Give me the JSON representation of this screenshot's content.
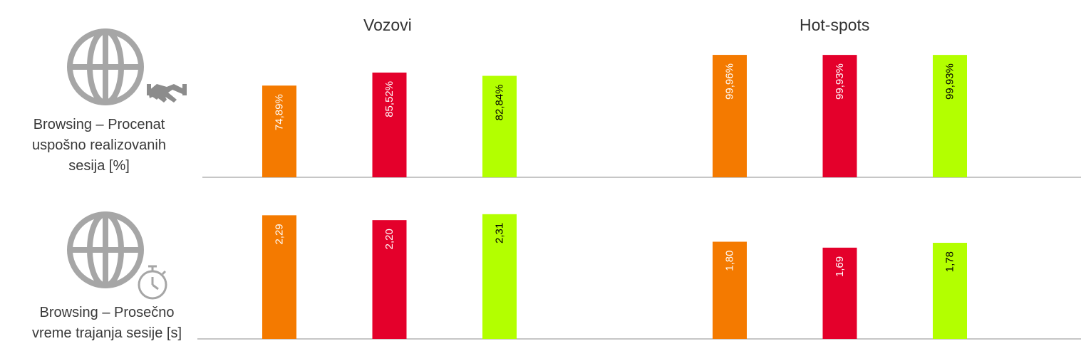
{
  "groups": [
    "Vozovi",
    "Hot-spots"
  ],
  "metrics": [
    {
      "label": "Browsing – Procenat\nuspošno realizovanih\nsesija [%]",
      "icon": "globe-handshake-icon"
    },
    {
      "label": "Browsing – Prosečno\nvreme trajanja sesije [s]",
      "icon": "globe-stopwatch-icon"
    }
  ],
  "colors": [
    "#f47a00",
    "#e4002b",
    "#b3ff00"
  ],
  "label_colors": [
    "#ffffff",
    "#ffffff",
    "#000000"
  ],
  "chart_data": [
    {
      "type": "bar",
      "title": "Browsing – Procenat uspošno realizovanih sesija [%]",
      "categories": [
        "Vozovi",
        "Hot-spots"
      ],
      "series": [
        {
          "values": [
            74.89,
            99.96
          ],
          "labels": [
            "74,89%",
            "99,96%"
          ]
        },
        {
          "values": [
            85.52,
            99.93
          ],
          "labels": [
            "85,52%",
            "99,93%"
          ]
        },
        {
          "values": [
            82.84,
            99.93
          ],
          "labels": [
            "82,84%",
            "99,93%"
          ]
        }
      ],
      "ylim": [
        0,
        100
      ]
    },
    {
      "type": "bar",
      "title": "Browsing – Prosečno vreme trajanja sesije [s]",
      "categories": [
        "Vozovi",
        "Hot-spots"
      ],
      "series": [
        {
          "values": [
            2.29,
            1.8
          ],
          "labels": [
            "2,29",
            "1,80"
          ]
        },
        {
          "values": [
            2.2,
            1.69
          ],
          "labels": [
            "2,20",
            "1,69"
          ]
        },
        {
          "values": [
            2.31,
            1.78
          ],
          "labels": [
            "2,31",
            "1,78"
          ]
        }
      ],
      "ylim": [
        0,
        2.4
      ]
    }
  ]
}
